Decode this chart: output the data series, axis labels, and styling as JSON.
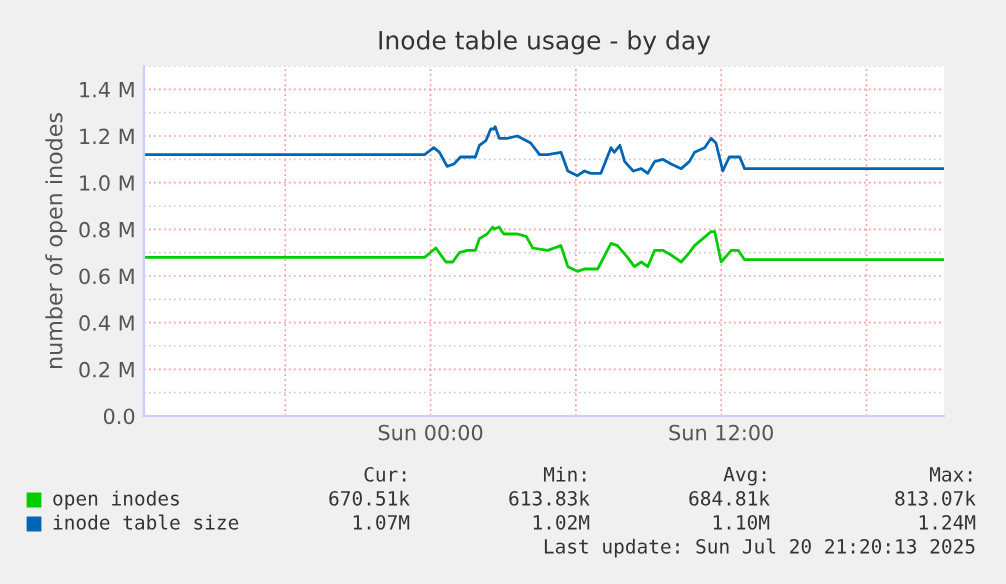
{
  "chart_data": {
    "type": "line",
    "title": "Inode table usage - by day",
    "ylabel": "number of open inodes",
    "xlim": [
      "2025-07-19T12:10",
      "2025-07-20T21:12"
    ],
    "xticks": [
      {
        "value": "2025-07-19T18:00",
        "label": null
      },
      {
        "value": "2025-07-20T00:00",
        "label": "Sun 00:00"
      },
      {
        "value": "2025-07-20T06:00",
        "label": null
      },
      {
        "value": "2025-07-20T12:00",
        "label": "Sun 12:00"
      },
      {
        "value": "2025-07-20T18:00",
        "label": null
      }
    ],
    "ylim": [
      0,
      1.5
    ],
    "yticks": [
      {
        "value": 0,
        "label": "0.0"
      },
      {
        "value": 0.1,
        "label": null
      },
      {
        "value": 0.2,
        "label": "0.2 M"
      },
      {
        "value": 0.3,
        "label": null
      },
      {
        "value": 0.4,
        "label": "0.4 M"
      },
      {
        "value": 0.5,
        "label": null
      },
      {
        "value": 0.6,
        "label": "0.6 M"
      },
      {
        "value": 0.7,
        "label": null
      },
      {
        "value": 0.8,
        "label": "0.8 M"
      },
      {
        "value": 0.9,
        "label": null
      },
      {
        "value": 1.0,
        "label": "1.0 M"
      },
      {
        "value": 1.1,
        "label": null
      },
      {
        "value": 1.2,
        "label": "1.2 M"
      },
      {
        "value": 1.3,
        "label": null
      },
      {
        "value": 1.4,
        "label": "1.4 M"
      },
      {
        "value": 1.5,
        "label": null
      }
    ],
    "grid": true,
    "legend": "bottom",
    "series": [
      {
        "name": "open inodes",
        "color": "#00cc00",
        "x": [
          "2025-07-19T12:10",
          "2025-07-19T23:45",
          "2025-07-20T00:13",
          "2025-07-20T00:38",
          "2025-07-20T00:55",
          "2025-07-20T01:11",
          "2025-07-20T01:31",
          "2025-07-20T01:51",
          "2025-07-20T02:01",
          "2025-07-20T02:20",
          "2025-07-20T02:34",
          "2025-07-20T02:37",
          "2025-07-20T02:50",
          "2025-07-20T02:57",
          "2025-07-20T03:02",
          "2025-07-20T03:35",
          "2025-07-20T03:57",
          "2025-07-20T04:13",
          "2025-07-20T04:50",
          "2025-07-20T05:23",
          "2025-07-20T05:40",
          "2025-07-20T06:04",
          "2025-07-20T06:21",
          "2025-07-20T06:54",
          "2025-07-20T07:27",
          "2025-07-20T07:43",
          "2025-07-20T08:08",
          "2025-07-20T08:25",
          "2025-07-20T08:42",
          "2025-07-20T08:58",
          "2025-07-20T09:15",
          "2025-07-20T09:35",
          "2025-07-20T09:56",
          "2025-07-20T10:21",
          "2025-07-20T10:41",
          "2025-07-20T10:54",
          "2025-07-20T11:35",
          "2025-07-20T11:44",
          "2025-07-20T12:00",
          "2025-07-20T12:25",
          "2025-07-20T12:42",
          "2025-07-20T12:58",
          "2025-07-20T21:12"
        ],
        "values": [
          0.68,
          0.68,
          0.72,
          0.66,
          0.66,
          0.7,
          0.71,
          0.71,
          0.76,
          0.78,
          0.81,
          0.8,
          0.81,
          0.79,
          0.78,
          0.78,
          0.77,
          0.72,
          0.71,
          0.73,
          0.64,
          0.62,
          0.63,
          0.63,
          0.74,
          0.73,
          0.68,
          0.64,
          0.66,
          0.64,
          0.71,
          0.71,
          0.69,
          0.66,
          0.7,
          0.73,
          0.79,
          0.79,
          0.66,
          0.71,
          0.71,
          0.67,
          0.67
        ]
      },
      {
        "name": "inode table size",
        "color": "#0066b3",
        "x": [
          "2025-07-19T12:10",
          "2025-07-19T23:45",
          "2025-07-20T00:08",
          "2025-07-20T00:22",
          "2025-07-20T00:41",
          "2025-07-20T00:58",
          "2025-07-20T01:14",
          "2025-07-20T01:51",
          "2025-07-20T02:01",
          "2025-07-20T02:17",
          "2025-07-20T02:29",
          "2025-07-20T02:37",
          "2025-07-20T02:40",
          "2025-07-20T02:50",
          "2025-07-20T03:02",
          "2025-07-20T03:10",
          "2025-07-20T03:35",
          "2025-07-20T04:08",
          "2025-07-20T04:30",
          "2025-07-20T04:50",
          "2025-07-20T05:23",
          "2025-07-20T05:40",
          "2025-07-20T06:04",
          "2025-07-20T06:21",
          "2025-07-20T06:37",
          "2025-07-20T07:02",
          "2025-07-20T07:27",
          "2025-07-20T07:35",
          "2025-07-20T07:49",
          "2025-07-20T08:01",
          "2025-07-20T08:22",
          "2025-07-20T08:42",
          "2025-07-20T08:58",
          "2025-07-20T09:15",
          "2025-07-20T09:35",
          "2025-07-20T09:56",
          "2025-07-20T10:21",
          "2025-07-20T10:41",
          "2025-07-20T10:54",
          "2025-07-20T11:19",
          "2025-07-20T11:35",
          "2025-07-20T11:47",
          "2025-07-20T12:04",
          "2025-07-20T12:20",
          "2025-07-20T12:46",
          "2025-07-20T12:58",
          "2025-07-20T13:06",
          "2025-07-20T21:12"
        ],
        "values": [
          1.12,
          1.12,
          1.15,
          1.13,
          1.07,
          1.08,
          1.11,
          1.11,
          1.16,
          1.18,
          1.23,
          1.23,
          1.24,
          1.19,
          1.19,
          1.19,
          1.2,
          1.17,
          1.12,
          1.12,
          1.13,
          1.05,
          1.03,
          1.05,
          1.04,
          1.04,
          1.15,
          1.13,
          1.16,
          1.09,
          1.05,
          1.06,
          1.04,
          1.09,
          1.1,
          1.08,
          1.06,
          1.09,
          1.13,
          1.15,
          1.19,
          1.17,
          1.05,
          1.11,
          1.11,
          1.06,
          1.06,
          1.06
        ]
      }
    ],
    "annotations": [
      "Cur:",
      "Min:",
      "Avg:",
      "Max:",
      "670.51k",
      "613.83k",
      "684.81k",
      "813.07k",
      "1.07M",
      "1.02M",
      "1.10M",
      "1.24M",
      "Last update: Sun Jul 20 21:20:13 2025"
    ]
  }
}
